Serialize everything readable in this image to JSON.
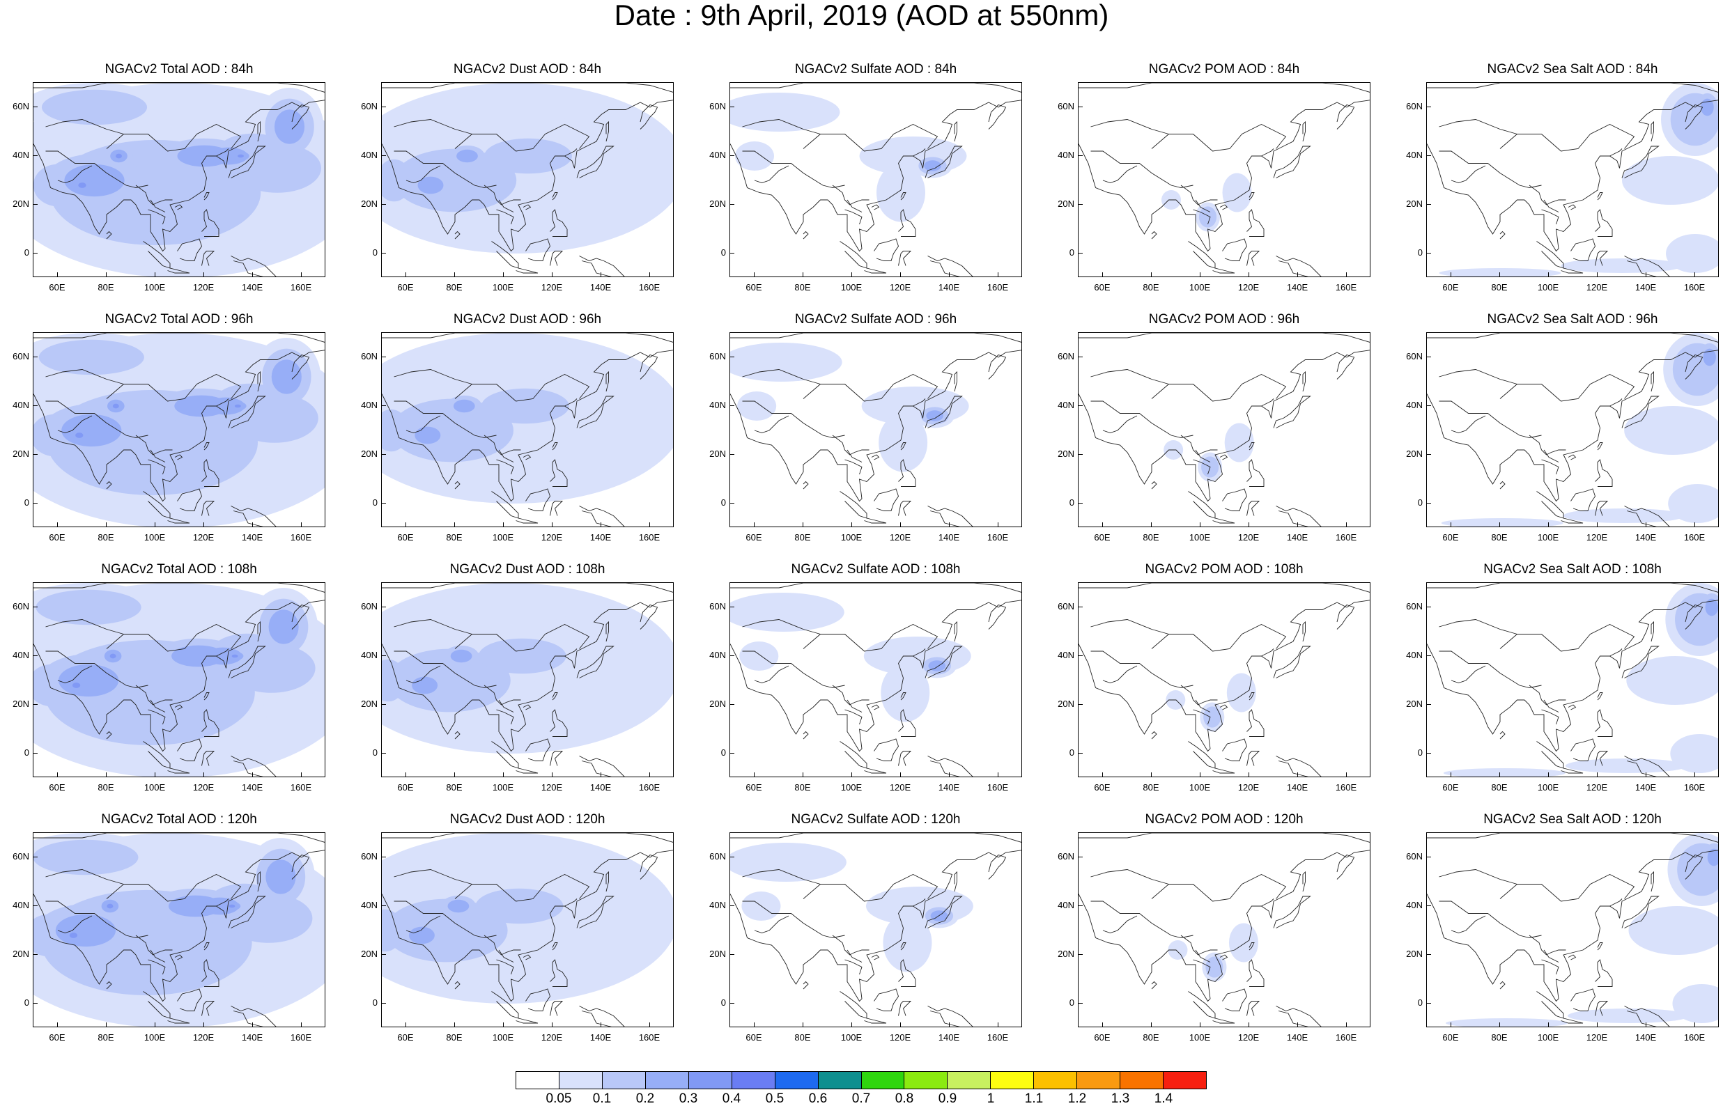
{
  "title": "Date : 9th April, 2019 (AOD at 550nm)",
  "map_axes": {
    "x_ticks": [
      "60E",
      "80E",
      "100E",
      "120E",
      "140E",
      "160E"
    ],
    "y_ticks": [
      "60N",
      "40N",
      "20N",
      "0"
    ]
  },
  "panels": [
    [
      {
        "title": "NGACv2 Total AOD : 84h",
        "species": "total"
      },
      {
        "title": "NGACv2 Dust AOD : 84h",
        "species": "dust"
      },
      {
        "title": "NGACv2 Sulfate AOD : 84h",
        "species": "sulfate"
      },
      {
        "title": "NGACv2 POM AOD : 84h",
        "species": "pom"
      },
      {
        "title": "NGACv2 Sea Salt AOD : 84h",
        "species": "seasalt"
      }
    ],
    [
      {
        "title": "NGACv2 Total AOD : 96h",
        "species": "total"
      },
      {
        "title": "NGACv2 Dust AOD : 96h",
        "species": "dust"
      },
      {
        "title": "NGACv2 Sulfate AOD : 96h",
        "species": "sulfate"
      },
      {
        "title": "NGACv2 POM AOD : 96h",
        "species": "pom"
      },
      {
        "title": "NGACv2 Sea Salt AOD : 96h",
        "species": "seasalt"
      }
    ],
    [
      {
        "title": "NGACv2 Total AOD : 108h",
        "species": "total"
      },
      {
        "title": "NGACv2 Dust AOD : 108h",
        "species": "dust"
      },
      {
        "title": "NGACv2 Sulfate AOD : 108h",
        "species": "sulfate"
      },
      {
        "title": "NGACv2 POM AOD : 108h",
        "species": "pom"
      },
      {
        "title": "NGACv2 Sea Salt AOD : 108h",
        "species": "seasalt"
      }
    ],
    [
      {
        "title": "NGACv2 Total AOD : 120h",
        "species": "total"
      },
      {
        "title": "NGACv2 Dust AOD : 120h",
        "species": "dust"
      },
      {
        "title": "NGACv2 Sulfate AOD : 120h",
        "species": "sulfate"
      },
      {
        "title": "NGACv2 POM AOD : 120h",
        "species": "pom"
      },
      {
        "title": "NGACv2 Sea Salt  AOD : 120h",
        "species": "seasalt"
      }
    ]
  ],
  "colorbar": {
    "colors": [
      "#ffffff",
      "#d9e1fb",
      "#b9c8f8",
      "#97aef7",
      "#8199f5",
      "#6a7df3",
      "#1e6af0",
      "#0f8f8f",
      "#2fd60f",
      "#8bea10",
      "#c8f060",
      "#fdfd10",
      "#fcc000",
      "#fa9a10",
      "#f97300",
      "#f72010"
    ],
    "labels": [
      "0.05",
      "0.1",
      "0.2",
      "0.3",
      "0.4",
      "0.5",
      "0.6",
      "0.7",
      "0.8",
      "0.9",
      "1",
      "1.1",
      "1.2",
      "1.3",
      "1.4"
    ]
  }
}
